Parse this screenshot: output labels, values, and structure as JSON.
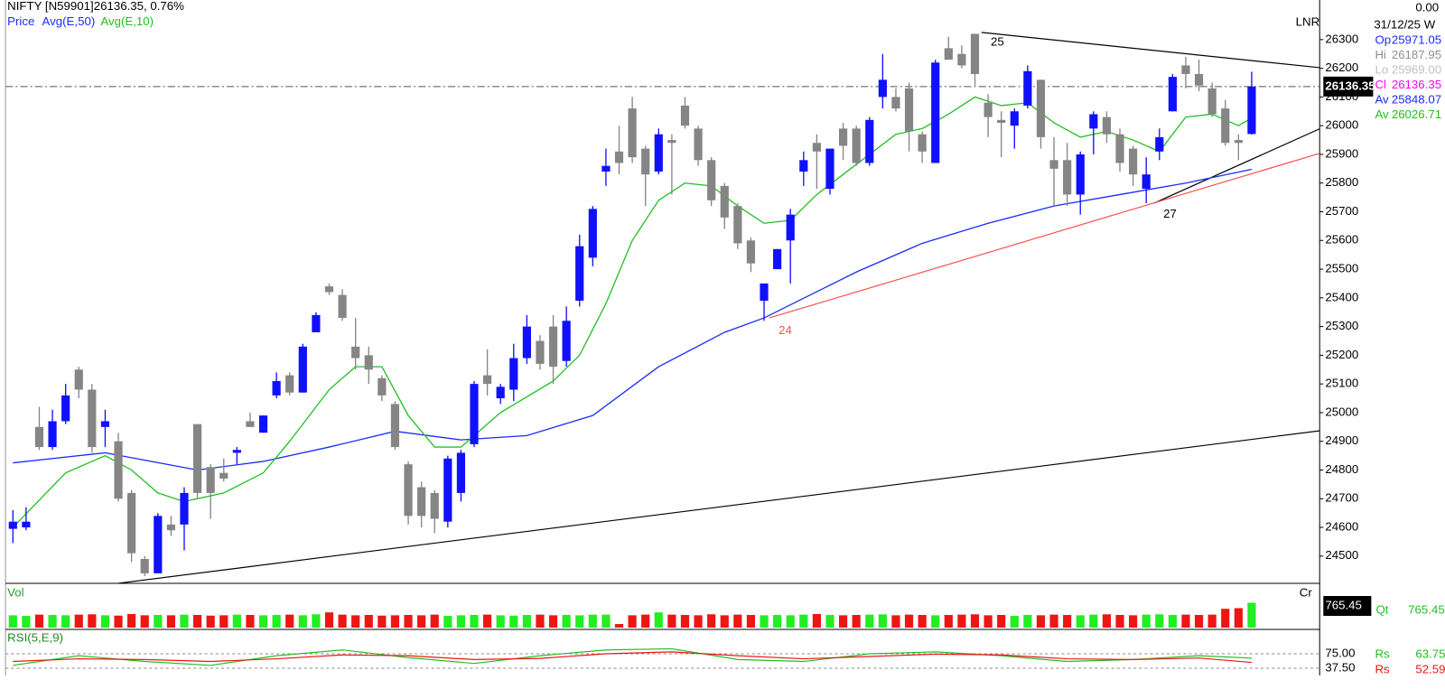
{
  "chart_data": {
    "type": "candlestick",
    "title": "NIFTY [N59901]",
    "quote": "26136.35, 0.76%",
    "price_label": "Price",
    "scale_label": "LNR",
    "xlim": [
      -0.56,
      99.16
    ],
    "ylim": [
      24405,
      26438
    ],
    "yticks": [
      24500,
      24600,
      24700,
      24800,
      24900,
      25000,
      25100,
      25200,
      25300,
      25400,
      25500,
      25600,
      25700,
      25800,
      25900,
      26000,
      26100,
      26200,
      26300
    ],
    "up_color": "#1010ff",
    "down_color": "#858585",
    "candles": {
      "open": [
        24595,
        24600,
        24950,
        24880,
        24970,
        25150,
        25080,
        24950,
        24900,
        24720,
        24490,
        24440,
        24610,
        24610,
        24960,
        24810,
        24790,
        24860,
        24970,
        24930,
        25060,
        25130,
        25070,
        25280,
        25440,
        25410,
        25230,
        25200,
        25120,
        25030,
        24820,
        24740,
        24720,
        24620,
        24720,
        24890,
        25130,
        25050,
        25080,
        25190,
        25250,
        25300,
        25180,
        25390,
        25540,
        25840,
        25910,
        26060,
        25920,
        25840,
        25950,
        26070,
        25990,
        25880,
        25790,
        25720,
        25600,
        25390,
        25500,
        25600,
        25840,
        25940,
        25780,
        25990,
        25990,
        25870,
        26100,
        26100,
        26130,
        25970,
        25870,
        26270,
        26250,
        26320,
        26080,
        26020,
        26000,
        26070,
        26160,
        25880,
        25880,
        25760,
        25990,
        26030,
        25970,
        25920,
        25780,
        25910,
        26050,
        26210,
        26180,
        26130,
        26060,
        25950,
        25971.05
      ],
      "high": [
        24660,
        24670,
        25020,
        25010,
        25100,
        25160,
        25100,
        25010,
        24930,
        24730,
        24500,
        24650,
        24640,
        24740,
        24960,
        24820,
        24840,
        24880,
        25000,
        24990,
        25140,
        25140,
        25240,
        25350,
        25450,
        25430,
        25330,
        25230,
        25130,
        25040,
        24830,
        24760,
        24730,
        24850,
        24870,
        25110,
        25220,
        25100,
        25240,
        25340,
        25270,
        25340,
        25370,
        25620,
        25720,
        25920,
        26000,
        26100,
        25930,
        25990,
        25970,
        26100,
        26000,
        25890,
        25800,
        25730,
        25610,
        25450,
        25570,
        25710,
        25910,
        25970,
        25920,
        26010,
        26000,
        26030,
        26250,
        26130,
        26150,
        25980,
        26230,
        26310,
        26280,
        26320,
        26110,
        26050,
        26060,
        26210,
        26160,
        25960,
        25940,
        25910,
        26050,
        26050,
        25990,
        25930,
        25890,
        25990,
        26180,
        26240,
        26230,
        26150,
        26090,
        25970,
        26187.95
      ],
      "low": [
        24545,
        24590,
        24870,
        24870,
        24960,
        25050,
        24860,
        24880,
        24690,
        24480,
        24430,
        24440,
        24570,
        24520,
        24700,
        24630,
        24760,
        24820,
        24950,
        24930,
        25050,
        25060,
        25070,
        25280,
        25410,
        25320,
        25150,
        25100,
        25040,
        24870,
        24610,
        24600,
        24580,
        24600,
        24690,
        24880,
        25060,
        25030,
        25040,
        25170,
        25150,
        25100,
        25160,
        25370,
        25510,
        25790,
        25830,
        25870,
        25720,
        25830,
        25760,
        25990,
        25860,
        25720,
        25640,
        25570,
        25490,
        25320,
        25500,
        25450,
        25790,
        25780,
        25760,
        25880,
        25860,
        25860,
        26060,
        26050,
        25910,
        25870,
        25870,
        26230,
        26200,
        26140,
        25960,
        25890,
        25920,
        26060,
        25920,
        25720,
        25720,
        25690,
        25900,
        25940,
        25840,
        25790,
        25730,
        25880,
        26050,
        26130,
        26120,
        26030,
        25930,
        25880,
        25969
      ],
      "close": [
        24620,
        24620,
        24880,
        24970,
        25060,
        25080,
        24880,
        24970,
        24700,
        24510,
        24440,
        24640,
        24590,
        24720,
        24720,
        24720,
        24770,
        24870,
        24950,
        24990,
        25110,
        25070,
        25230,
        25340,
        25420,
        25330,
        25190,
        25150,
        25060,
        24880,
        24640,
        24640,
        24630,
        24840,
        24860,
        25100,
        25100,
        25090,
        25190,
        25300,
        25170,
        25160,
        25320,
        25580,
        25710,
        25860,
        25870,
        25890,
        25830,
        25970,
        25940,
        26000,
        25880,
        25740,
        25680,
        25590,
        25520,
        25450,
        25570,
        25690,
        25880,
        25910,
        25920,
        25930,
        25870,
        26020,
        26160,
        26060,
        25980,
        25910,
        26220,
        26230,
        26210,
        26180,
        26030,
        26010,
        26050,
        26190,
        25960,
        25850,
        25760,
        25900,
        26040,
        25970,
        25870,
        25830,
        25830,
        25960,
        26170,
        26180,
        26140,
        26040,
        25940,
        25940,
        26136.35
      ]
    },
    "series": [
      {
        "name": "Avg(E,50)",
        "color": "#1a2cff",
        "x": [
          0,
          7,
          14,
          19,
          24,
          29,
          34,
          39,
          44,
          49,
          54,
          57,
          64,
          69,
          74,
          79,
          84,
          89,
          94
        ],
        "values": [
          24825,
          24860,
          24800,
          24830,
          24880,
          24935,
          24905,
          24920,
          24990,
          25160,
          25280,
          25330,
          25490,
          25590,
          25660,
          25720,
          25760,
          25800,
          25848.07
        ]
      },
      {
        "name": "Avg(E,10)",
        "color": "#22c022",
        "x": [
          0,
          4,
          7,
          9,
          11,
          13,
          16,
          19,
          21,
          24,
          26,
          28,
          30,
          32,
          34,
          37,
          41,
          43,
          45,
          47,
          49,
          51,
          53,
          55,
          57,
          59,
          61,
          63,
          65,
          67,
          69,
          71,
          73,
          75,
          77,
          79,
          81,
          83,
          85,
          87,
          89,
          91,
          93,
          94
        ],
        "values": [
          24600,
          24790,
          24850,
          24800,
          24720,
          24690,
          24720,
          24790,
          24900,
          25080,
          25160,
          25160,
          24990,
          24880,
          24880,
          25000,
          25110,
          25200,
          25380,
          25600,
          25740,
          25800,
          25790,
          25720,
          25660,
          25670,
          25760,
          25830,
          25900,
          25970,
          25990,
          26040,
          26100,
          26070,
          26080,
          26010,
          25960,
          25980,
          25950,
          25910,
          26030,
          26040,
          26000,
          26026.71
        ]
      }
    ],
    "trendlines": [
      {
        "color": "#000000",
        "x": [
          -0.6,
          99.2
        ],
        "values": [
          24355,
          24937
        ]
      },
      {
        "color": "#000000",
        "x": [
          73.5,
          99.2
        ],
        "values": [
          26325,
          26202
        ]
      },
      {
        "color": "#000000",
        "x": [
          86.6,
          99.2
        ],
        "values": [
          25730,
          25990
        ]
      },
      {
        "color": "#ff5050",
        "x": [
          57.4,
          99.2
        ],
        "values": [
          25330,
          25904
        ]
      }
    ],
    "annotations": [
      {
        "text": "25",
        "x": 74.2,
        "y": 26290,
        "color": "#000000"
      },
      {
        "text": "24",
        "x": 58.1,
        "y": 25285,
        "color": "#ff5050"
      },
      {
        "text": "27",
        "x": 87.3,
        "y": 25690,
        "color": "#000000"
      }
    ],
    "price_tag": {
      "value": 26136.35,
      "label": "26136.35"
    },
    "info": {
      "top": "0.00",
      "date": "31/12/25 W",
      "rows": [
        {
          "label": "Op",
          "value": "25971.05",
          "color": "#1a2cff"
        },
        {
          "label": "Hi",
          "value": "26187.95",
          "color": "#909090"
        },
        {
          "label": "Lo",
          "value": "25969.00",
          "color": "#c0c0c0"
        },
        {
          "label": "Cl",
          "value": "26136.35",
          "color": "#ff00ff"
        },
        {
          "label": "Av",
          "value": "25848.07",
          "color": "#1a2cff"
        },
        {
          "label": "Av",
          "value": "26026.71",
          "color": "#22c022"
        }
      ]
    },
    "volume": {
      "label": "Vol",
      "unit": "Cr",
      "ylim": [
        0,
        1310
      ],
      "up_color": "#22ee22",
      "down_color": "#ee1515",
      "values": [
        380,
        360,
        400,
        390,
        380,
        400,
        410,
        380,
        370,
        420,
        380,
        390,
        380,
        400,
        390,
        370,
        380,
        400,
        390,
        380,
        390,
        400,
        380,
        410,
        470,
        400,
        380,
        390,
        370,
        380,
        390,
        380,
        400,
        360,
        380,
        390,
        400,
        380,
        370,
        390,
        400,
        380,
        390,
        380,
        400,
        400,
        110,
        380,
        400,
        470,
        400,
        390,
        380,
        410,
        380,
        400,
        390,
        380,
        390,
        380,
        400,
        420,
        390,
        380,
        390,
        400,
        410,
        380,
        400,
        390,
        380,
        390,
        400,
        410,
        380,
        390,
        360,
        390,
        380,
        400,
        390,
        380,
        400,
        410,
        390,
        380,
        400,
        410,
        390,
        400,
        390,
        400,
        580,
        600,
        765.45
      ],
      "tag": "765.45",
      "qt_label": "Qt",
      "qt_value": "765.45"
    },
    "rsi": {
      "label": "RSI(5,E,9)",
      "ylim": [
        18.75,
        133.6
      ],
      "yticks": [
        {
          "value": 75,
          "label": "75.00"
        },
        {
          "value": 37.5,
          "label": "37.50"
        }
      ],
      "series": [
        {
          "name": "Rs",
          "color": "#22c022",
          "last": "63.75",
          "x": [
            0,
            5,
            10,
            15,
            20,
            25,
            30,
            35,
            40,
            45,
            50,
            55,
            60,
            65,
            70,
            75,
            80,
            85,
            90,
            94
          ],
          "values": [
            45,
            70,
            55,
            45,
            70,
            85,
            65,
            50,
            70,
            85,
            88,
            60,
            55,
            75,
            80,
            70,
            55,
            60,
            70,
            63.75
          ]
        },
        {
          "name": "Rs",
          "color": "#ee1515",
          "last": "52.59",
          "x": [
            0,
            5,
            10,
            15,
            20,
            25,
            30,
            35,
            40,
            45,
            50,
            55,
            60,
            65,
            70,
            75,
            80,
            85,
            90,
            94
          ],
          "values": [
            55,
            62,
            60,
            55,
            62,
            72,
            70,
            60,
            63,
            75,
            80,
            70,
            62,
            68,
            74,
            72,
            62,
            60,
            64,
            52.59
          ]
        }
      ]
    }
  }
}
